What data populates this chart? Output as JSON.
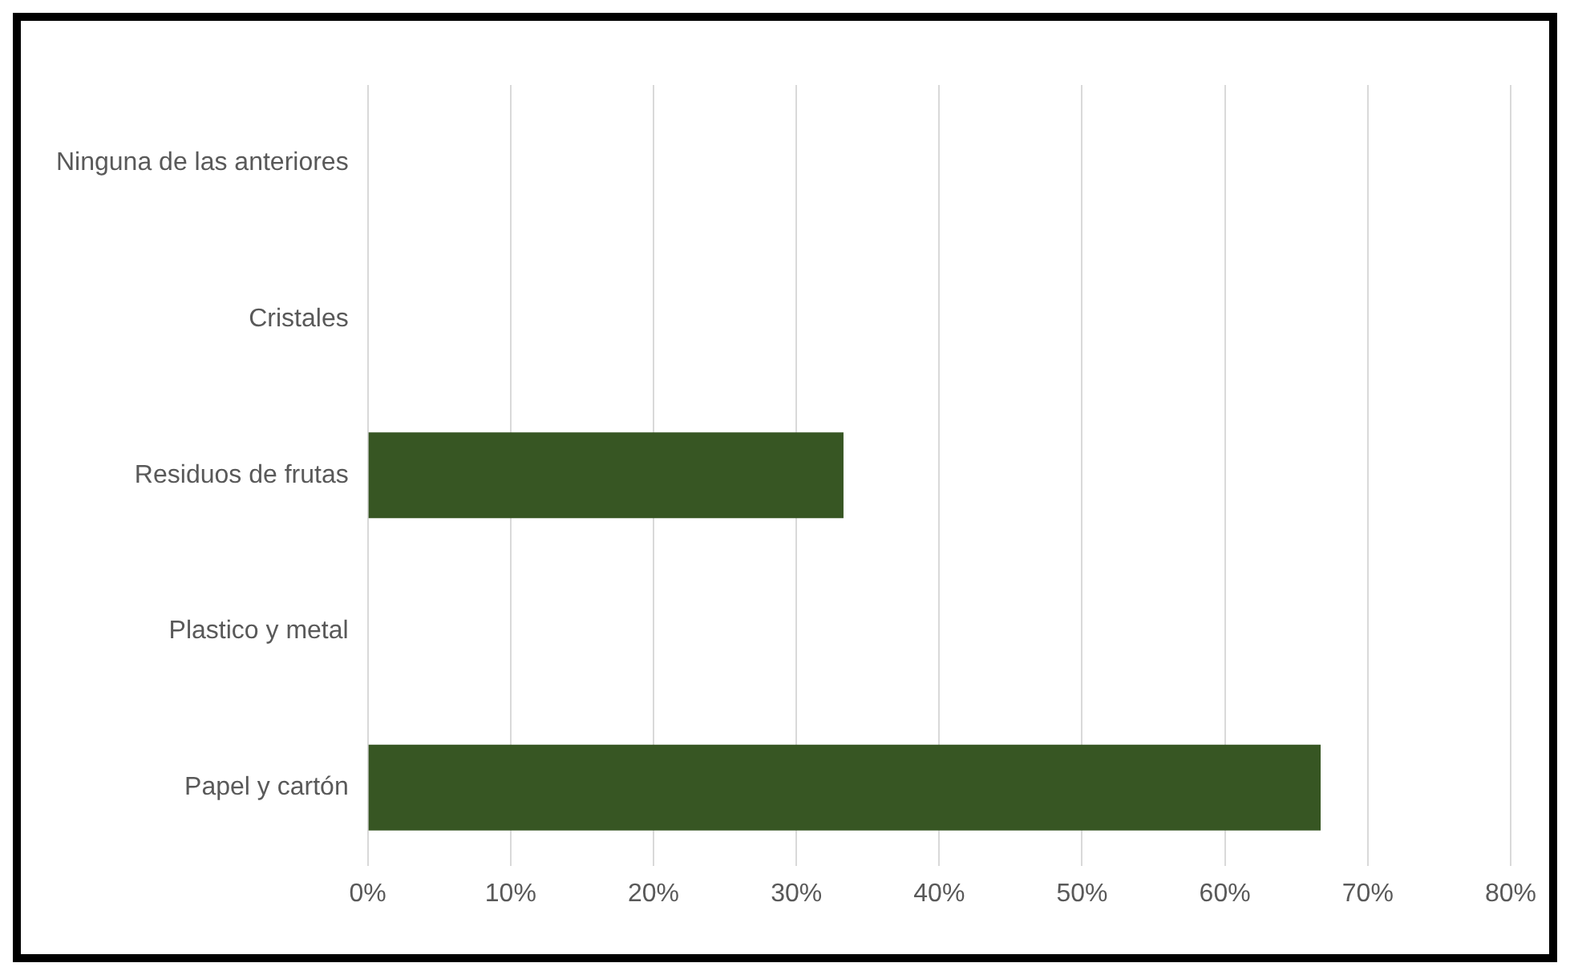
{
  "chart_data": {
    "type": "bar",
    "orientation": "horizontal",
    "categories": [
      "Ninguna de las anteriores",
      "Cristales",
      "Residuos de frutas",
      "Plastico y metal",
      "Papel y cartón"
    ],
    "values": [
      0,
      0,
      33.3,
      0,
      66.7
    ],
    "color": "#375623",
    "xlim": [
      0,
      80
    ],
    "xticks": [
      {
        "value": 0,
        "label": "0%"
      },
      {
        "value": 10,
        "label": "10%"
      },
      {
        "value": 20,
        "label": "20%"
      },
      {
        "value": 30,
        "label": "30%"
      },
      {
        "value": 40,
        "label": "40%"
      },
      {
        "value": 50,
        "label": "50%"
      },
      {
        "value": 60,
        "label": "60%"
      },
      {
        "value": 70,
        "label": "70%"
      },
      {
        "value": 80,
        "label": "80%"
      }
    ],
    "grid": "x",
    "legend": false
  }
}
